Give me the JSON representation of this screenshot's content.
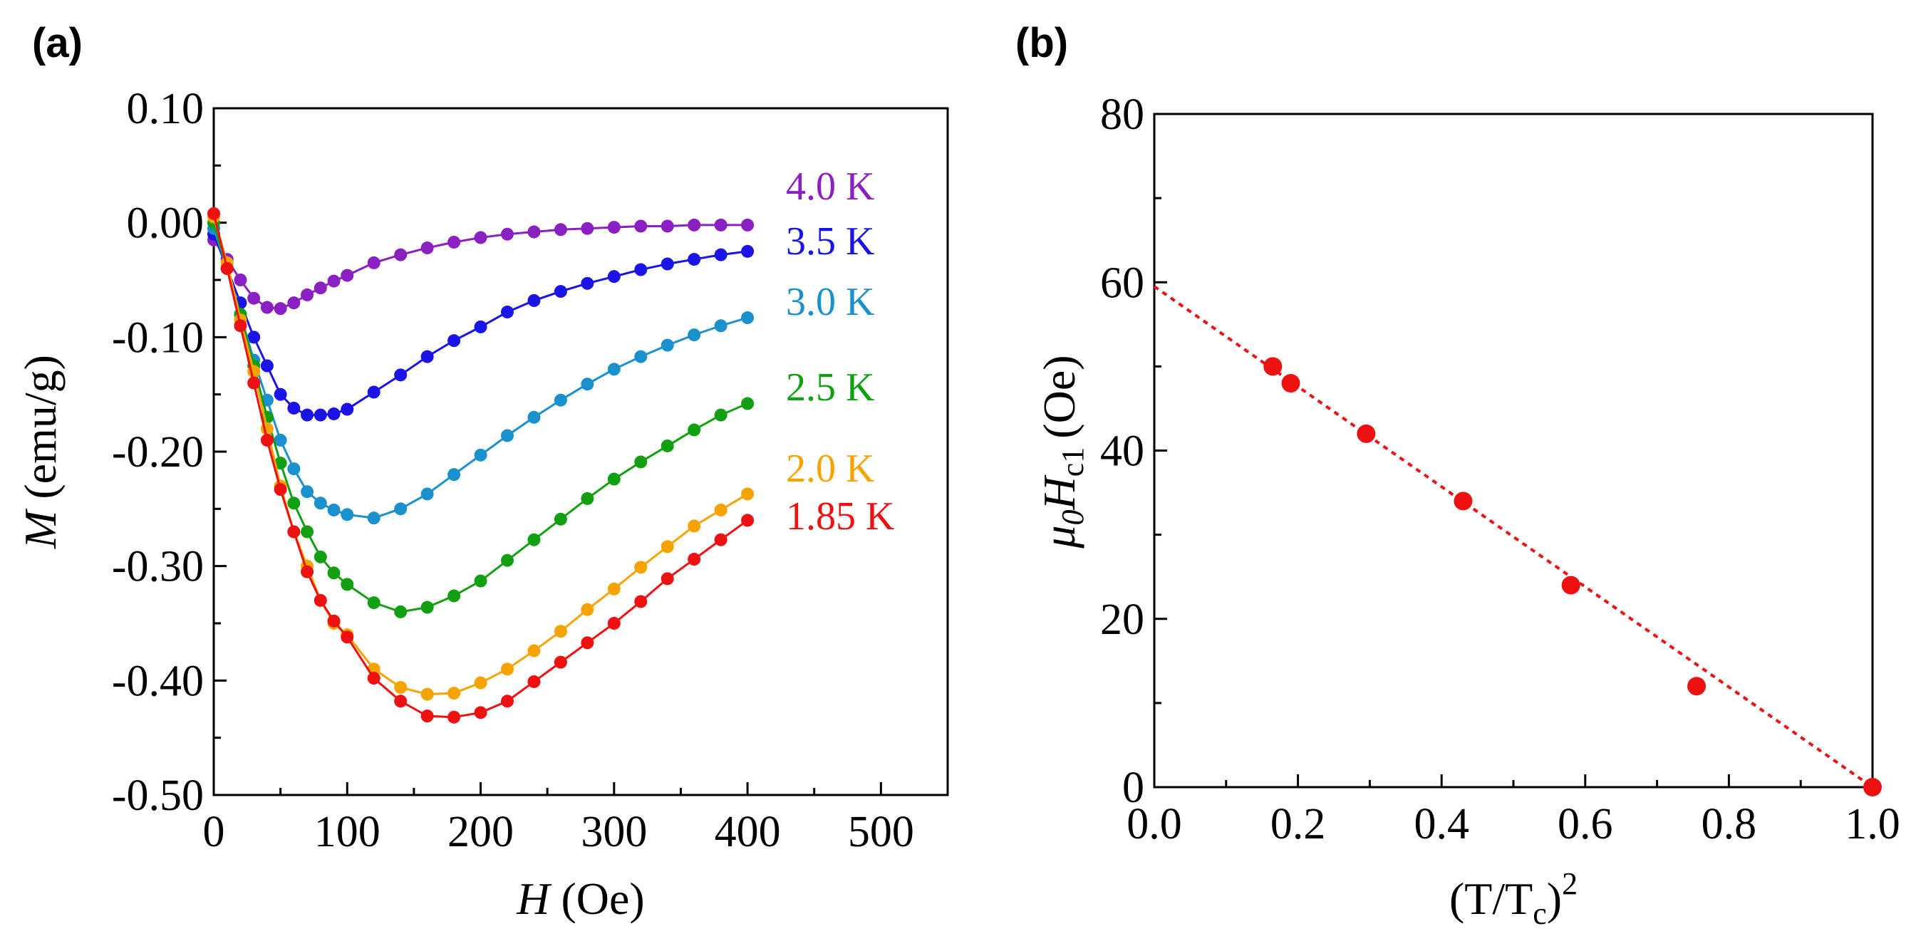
{
  "chart_data": [
    {
      "panel_label": "(a)",
      "type": "line",
      "xlabel": {
        "symbol": "H",
        "unit": "(Oe)"
      },
      "ylabel": {
        "symbol": "M",
        "unit": "(emu/g)"
      },
      "xlim": [
        0,
        550
      ],
      "ylim": [
        -0.5,
        0.1
      ],
      "x_ticks": [
        0,
        100,
        200,
        300,
        400,
        500
      ],
      "x_tick_labels": [
        "0",
        "100",
        "200",
        "300",
        "400",
        "500"
      ],
      "y_ticks": [
        0.1,
        0.0,
        -0.1,
        -0.2,
        -0.3,
        -0.4,
        -0.5
      ],
      "y_tick_labels": [
        "0.10",
        "0.00",
        "-0.10",
        "-0.20",
        "-0.30",
        "-0.40",
        "-0.50"
      ],
      "grid": false,
      "series": [
        {
          "name": "4.0 K",
          "color": "#8a1fc2",
          "x": [
            0,
            10,
            20,
            30,
            40,
            50,
            60,
            70,
            80,
            90,
            100,
            120,
            140,
            160,
            180,
            200,
            220,
            240,
            260,
            280,
            300,
            320,
            340,
            360,
            380,
            400
          ],
          "y": [
            -0.015,
            -0.032,
            -0.05,
            -0.066,
            -0.074,
            -0.075,
            -0.07,
            -0.063,
            -0.057,
            -0.051,
            -0.046,
            -0.035,
            -0.028,
            -0.022,
            -0.017,
            -0.013,
            -0.01,
            -0.008,
            -0.006,
            -0.005,
            -0.004,
            -0.003,
            -0.003,
            -0.002,
            -0.002,
            -0.002
          ]
        },
        {
          "name": "3.5 K",
          "color": "#1a14e6",
          "x": [
            0,
            10,
            20,
            30,
            40,
            50,
            60,
            70,
            80,
            90,
            100,
            120,
            140,
            160,
            180,
            200,
            220,
            240,
            260,
            280,
            300,
            320,
            340,
            360,
            380,
            400
          ],
          "y": [
            -0.01,
            -0.04,
            -0.07,
            -0.1,
            -0.125,
            -0.15,
            -0.162,
            -0.168,
            -0.168,
            -0.167,
            -0.163,
            -0.148,
            -0.133,
            -0.117,
            -0.103,
            -0.091,
            -0.078,
            -0.068,
            -0.06,
            -0.053,
            -0.047,
            -0.041,
            -0.036,
            -0.032,
            -0.028,
            -0.025
          ]
        },
        {
          "name": "3.0 K",
          "color": "#1a90cc",
          "x": [
            0,
            10,
            20,
            30,
            40,
            50,
            60,
            70,
            80,
            90,
            100,
            120,
            140,
            160,
            180,
            200,
            220,
            240,
            260,
            280,
            300,
            320,
            340,
            360,
            380,
            400
          ],
          "y": [
            -0.005,
            -0.04,
            -0.08,
            -0.12,
            -0.155,
            -0.19,
            -0.215,
            -0.235,
            -0.245,
            -0.251,
            -0.255,
            -0.258,
            -0.25,
            -0.237,
            -0.22,
            -0.203,
            -0.186,
            -0.17,
            -0.155,
            -0.141,
            -0.128,
            -0.117,
            -0.107,
            -0.098,
            -0.09,
            -0.083
          ]
        },
        {
          "name": "2.5 K",
          "color": "#12a012",
          "x": [
            0,
            10,
            20,
            30,
            40,
            50,
            60,
            70,
            80,
            90,
            100,
            120,
            140,
            160,
            180,
            200,
            220,
            240,
            260,
            280,
            300,
            320,
            340,
            360,
            380,
            400
          ],
          "y": [
            0.0,
            -0.04,
            -0.08,
            -0.125,
            -0.17,
            -0.21,
            -0.245,
            -0.27,
            -0.292,
            -0.306,
            -0.316,
            -0.332,
            -0.34,
            -0.336,
            -0.326,
            -0.313,
            -0.295,
            -0.277,
            -0.259,
            -0.241,
            -0.224,
            -0.209,
            -0.195,
            -0.181,
            -0.168,
            -0.158
          ]
        },
        {
          "name": "2.0 K",
          "color": "#f5a300",
          "x": [
            0,
            10,
            20,
            30,
            40,
            50,
            60,
            70,
            80,
            90,
            100,
            120,
            140,
            160,
            180,
            200,
            220,
            240,
            260,
            280,
            300,
            320,
            340,
            360,
            380,
            400
          ],
          "y": [
            0.005,
            -0.035,
            -0.085,
            -0.13,
            -0.18,
            -0.23,
            -0.27,
            -0.3,
            -0.33,
            -0.35,
            -0.36,
            -0.39,
            -0.406,
            -0.412,
            -0.411,
            -0.402,
            -0.39,
            -0.374,
            -0.357,
            -0.338,
            -0.32,
            -0.301,
            -0.283,
            -0.265,
            -0.251,
            -0.237
          ]
        },
        {
          "name": "1.85 K",
          "color": "#ee1111",
          "x": [
            0,
            10,
            20,
            30,
            40,
            50,
            60,
            70,
            80,
            90,
            100,
            120,
            140,
            160,
            180,
            200,
            220,
            240,
            260,
            280,
            300,
            320,
            340,
            360,
            380,
            400
          ],
          "y": [
            0.008,
            -0.04,
            -0.09,
            -0.14,
            -0.19,
            -0.233,
            -0.27,
            -0.305,
            -0.33,
            -0.348,
            -0.362,
            -0.398,
            -0.418,
            -0.431,
            -0.432,
            -0.428,
            -0.418,
            -0.401,
            -0.384,
            -0.367,
            -0.35,
            -0.331,
            -0.311,
            -0.294,
            -0.277,
            -0.26
          ]
        }
      ]
    },
    {
      "panel_label": "(b)",
      "type": "scatter",
      "xlabel": {
        "text": "(T/T",
        "sub": "c",
        "close": ")",
        "sup": "2"
      },
      "ylabel": {
        "mu": "μ",
        "mu_sub": "0",
        "H": "H",
        "H_sub": "c1",
        "unit": "(Oe)"
      },
      "xlim": [
        0,
        1.0
      ],
      "ylim": [
        0,
        80
      ],
      "x_ticks": [
        0,
        0.2,
        0.4,
        0.6,
        0.8,
        1.0
      ],
      "x_tick_labels": [
        "0.0",
        "0.2",
        "0.4",
        "0.6",
        "0.8",
        "1.0"
      ],
      "y_ticks": [
        0,
        20,
        40,
        60,
        80
      ],
      "y_tick_labels": [
        "0",
        "20",
        "40",
        "60",
        "80"
      ],
      "grid": false,
      "point_color": "#ee1111",
      "points": {
        "x": [
          0.165,
          0.19,
          0.295,
          0.43,
          0.58,
          0.755,
          1.0
        ],
        "y": [
          50,
          48,
          42,
          34,
          24,
          12,
          0
        ]
      },
      "fit_line": {
        "style": "dotted",
        "color": "#ee1111",
        "x": [
          0,
          1.0
        ],
        "y": [
          59.5,
          0
        ]
      }
    }
  ]
}
